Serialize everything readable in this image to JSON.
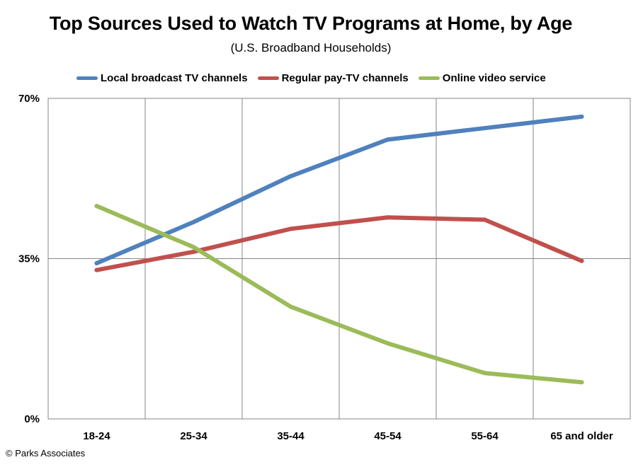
{
  "chart_data": {
    "type": "line",
    "title": "Top Sources Used to Watch TV Programs at Home, by Age",
    "subtitle": "(U.S. Broadband  Households)",
    "categories": [
      "18-24",
      "25-34",
      "35-44",
      "45-54",
      "55-64",
      "65 and older"
    ],
    "ylim": [
      0,
      70
    ],
    "yticks": [
      0,
      35,
      70
    ],
    "ytick_labels": [
      "0%",
      "35%",
      "70%"
    ],
    "grid": true,
    "legend_position": "top",
    "series": [
      {
        "name": "Local broadcast TV channels",
        "color": "#4f81bd",
        "values": [
          34,
          43,
          53,
          61,
          63.5,
          66
        ]
      },
      {
        "name": "Regular pay-TV channels",
        "color": "#c0504d",
        "values": [
          32.5,
          36.5,
          41.5,
          44,
          43.5,
          34.5
        ]
      },
      {
        "name": "Online video service",
        "color": "#9bbb59",
        "values": [
          46.5,
          37.5,
          24.5,
          16.5,
          10,
          8
        ]
      }
    ]
  },
  "footer": {
    "copyright": "© Parks Associates"
  }
}
